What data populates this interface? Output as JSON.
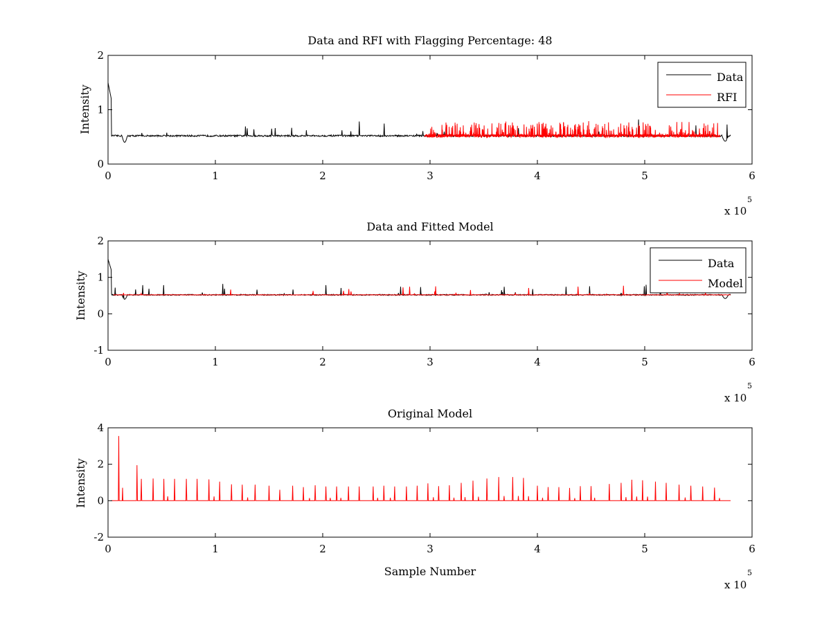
{
  "chart_data": [
    {
      "type": "line",
      "title": "Data and RFI with Flagging Percentage: 48",
      "xlabel": "",
      "ylabel": "Intensity",
      "xlim": [
        0,
        6
      ],
      "ylim": [
        0,
        2
      ],
      "xticks": [
        "0",
        "1",
        "2",
        "3",
        "4",
        "5",
        "6"
      ],
      "yticks": [
        "0",
        "1",
        "2"
      ],
      "x_multiplier_base": "x 10",
      "x_multiplier_exp": "5",
      "grid": false,
      "legend_position": "top-right",
      "series": [
        {
          "name": "Data",
          "color": "#000000",
          "baseline": 0.52,
          "x_range": [
            0,
            5.8
          ],
          "noise": 0.015
        },
        {
          "name": "RFI",
          "color": "#ff0000",
          "baseline": 0.52,
          "x_range": [
            2.95,
            5.7
          ],
          "noise": 0.03
        }
      ]
    },
    {
      "type": "line",
      "title": "Data and Fitted Model",
      "xlabel": "",
      "ylabel": "Intensity",
      "xlim": [
        0,
        6
      ],
      "ylim": [
        -1,
        2
      ],
      "xticks": [
        "0",
        "1",
        "2",
        "3",
        "4",
        "5",
        "6"
      ],
      "yticks": [
        "-1",
        "0",
        "1",
        "2"
      ],
      "x_multiplier_base": "x 10",
      "x_multiplier_exp": "5",
      "grid": false,
      "legend_position": "top-right",
      "series": [
        {
          "name": "Data",
          "color": "#000000",
          "baseline": 0.52,
          "x_range": [
            0,
            5.8
          ],
          "noise": 0.015
        },
        {
          "name": "Model",
          "color": "#ff0000",
          "baseline": 0.52,
          "x_range": [
            0.05,
            5.8
          ],
          "noise": 0.005
        }
      ]
    },
    {
      "type": "line",
      "title": "Original Model",
      "xlabel": "Sample Number",
      "ylabel": "Intensity",
      "xlim": [
        0,
        6
      ],
      "ylim": [
        -2,
        4
      ],
      "xticks": [
        "0",
        "1",
        "2",
        "3",
        "4",
        "5",
        "6"
      ],
      "yticks": [
        "-2",
        "0",
        "2",
        "4"
      ],
      "x_multiplier_base": "x 10",
      "x_multiplier_exp": "5",
      "grid": false,
      "series": [
        {
          "color": "#ff0000",
          "baseline": 0,
          "x_range": [
            0.03,
            5.8
          ],
          "peaks": [
            [
              0.1,
              3.55
            ],
            [
              0.27,
              1.95
            ],
            [
              0.31,
              1.2
            ],
            [
              0.42,
              1.22
            ],
            [
              0.52,
              1.2
            ],
            [
              0.62,
              1.2
            ],
            [
              0.73,
              1.2
            ],
            [
              0.83,
              1.2
            ],
            [
              0.94,
              1.17
            ],
            [
              1.04,
              1.05
            ],
            [
              1.15,
              0.9
            ],
            [
              1.25,
              0.88
            ],
            [
              1.37,
              0.88
            ],
            [
              1.5,
              0.82
            ],
            [
              1.6,
              0.6
            ],
            [
              1.72,
              0.82
            ],
            [
              1.82,
              0.75
            ],
            [
              1.93,
              0.85
            ],
            [
              2.03,
              0.78
            ],
            [
              2.13,
              0.78
            ],
            [
              2.24,
              0.78
            ],
            [
              2.34,
              0.78
            ],
            [
              2.47,
              0.78
            ],
            [
              2.57,
              0.82
            ],
            [
              2.67,
              0.78
            ],
            [
              2.78,
              0.78
            ],
            [
              2.88,
              0.82
            ],
            [
              2.98,
              0.95
            ],
            [
              3.08,
              0.8
            ],
            [
              3.18,
              0.85
            ],
            [
              3.29,
              0.98
            ],
            [
              3.4,
              1.1
            ],
            [
              3.53,
              1.22
            ],
            [
              3.64,
              1.3
            ],
            [
              3.77,
              1.3
            ],
            [
              3.87,
              1.25
            ],
            [
              4.0,
              0.82
            ],
            [
              4.1,
              0.75
            ],
            [
              4.2,
              0.75
            ],
            [
              4.3,
              0.7
            ],
            [
              4.4,
              0.8
            ],
            [
              4.5,
              0.8
            ],
            [
              4.67,
              0.92
            ],
            [
              4.78,
              0.98
            ],
            [
              4.88,
              1.15
            ],
            [
              4.98,
              1.12
            ],
            [
              5.1,
              1.05
            ],
            [
              5.2,
              0.98
            ],
            [
              5.32,
              0.88
            ],
            [
              5.43,
              0.82
            ],
            [
              5.54,
              0.78
            ],
            [
              5.65,
              0.72
            ]
          ]
        }
      ]
    }
  ]
}
